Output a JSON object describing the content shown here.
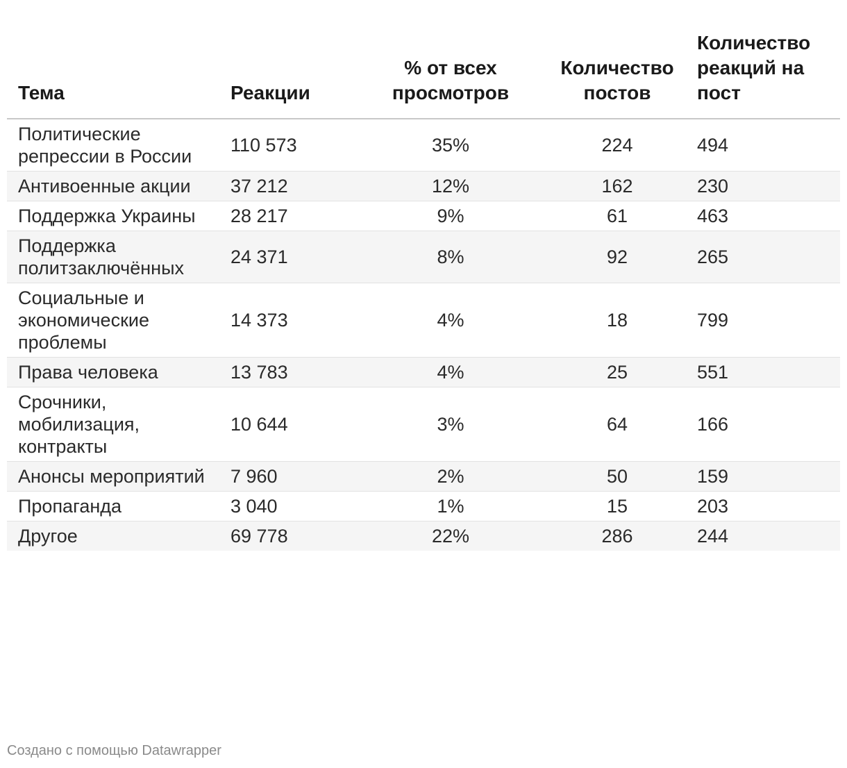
{
  "chart_data": {
    "type": "table",
    "columns": [
      "Тема",
      "Реакции",
      "% от всех просмотров",
      "Количество постов",
      "Количество реакций на пост"
    ],
    "rows": [
      [
        "Политические репрессии в России",
        "110 573",
        "35%",
        "224",
        "494"
      ],
      [
        "Антивоенные акции",
        "37 212",
        "12%",
        "162",
        "230"
      ],
      [
        "Поддержка Украины",
        "28 217",
        "9%",
        "61",
        "463"
      ],
      [
        "Поддержка политзаключённых",
        "24 371",
        "8%",
        "92",
        "265"
      ],
      [
        "Социальные и экономические проблемы",
        "14 373",
        "4%",
        "18",
        "799"
      ],
      [
        "Права человека",
        "13 783",
        "4%",
        "25",
        "551"
      ],
      [
        "Срочники, мобилизация, контракты",
        "10 644",
        "3%",
        "64",
        "166"
      ],
      [
        "Анонсы мероприятий",
        "7 960",
        "2%",
        "50",
        "159"
      ],
      [
        "Пропаганда",
        "3 040",
        "1%",
        "15",
        "203"
      ],
      [
        "Другое",
        "69 778",
        "22%",
        "286",
        "244"
      ]
    ]
  },
  "credit": "Создано с помощью Datawrapper"
}
